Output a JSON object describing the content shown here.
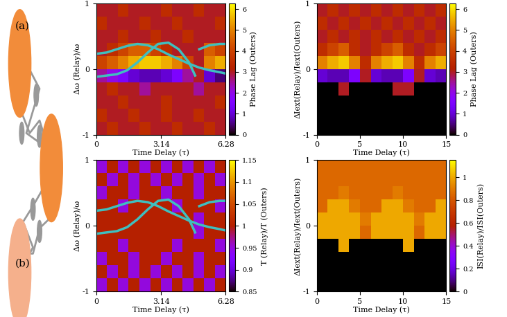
{
  "panel_labels": [
    "(a)",
    "(b)"
  ],
  "chart_data": [
    {
      "type": "heatmap",
      "x_label": "Time Delay (τ)",
      "y_label": "Δω (Relay)/ω",
      "xlim": [
        0,
        6.28
      ],
      "ylim": [
        -1,
        1
      ],
      "xticks": [
        0,
        3.14,
        6.28
      ],
      "yticks": [
        -1,
        0,
        1
      ],
      "colorbar_label": "Phase Lag (Outers)",
      "colorbar_range": [
        0,
        6.28
      ],
      "colorbar_ticks": [
        0,
        1,
        2,
        3,
        4,
        5,
        6
      ],
      "cells": [
        [
          3,
          3.5,
          3,
          3,
          3.5,
          3,
          3,
          3.5,
          3,
          3,
          3.5,
          3
        ],
        [
          3.5,
          3,
          3,
          3.5,
          3,
          3,
          3.5,
          3,
          3,
          3.5,
          3,
          3
        ],
        [
          3,
          3,
          3.5,
          3,
          3,
          3,
          3.5,
          3,
          3,
          3,
          3,
          3.5
        ],
        [
          3,
          3.5,
          3,
          3,
          2.5,
          3,
          3,
          3,
          3,
          2.5,
          3,
          3
        ],
        [
          2.5,
          2,
          1.5,
          1,
          0.8,
          0.8,
          1,
          1.5,
          2.5,
          3,
          1,
          0.5
        ],
        [
          4,
          4.5,
          5,
          5.5,
          5.8,
          5.8,
          5.5,
          5,
          4,
          3,
          5,
          5.5
        ],
        [
          3,
          3.5,
          4,
          4.5,
          4.5,
          4,
          3.5,
          3,
          3,
          3,
          4.5,
          4
        ],
        [
          3,
          3,
          3.5,
          3,
          3,
          3.5,
          3,
          3,
          3.5,
          3,
          3,
          3
        ],
        [
          3.5,
          3,
          3,
          3,
          3.5,
          3,
          3,
          3.5,
          3,
          3,
          3,
          3.5
        ],
        [
          3,
          3,
          3.5,
          3,
          3,
          3,
          3.5,
          3,
          3,
          3.5,
          3,
          3
        ]
      ],
      "series": [
        {
          "color": "#3fbfbf",
          "x": [
            0,
            0.5,
            1,
            1.5,
            2,
            2.5,
            3,
            3.5,
            4,
            4.5,
            5,
            5.5,
            6,
            6.28
          ],
          "values": [
            0.23,
            0.25,
            0.3,
            0.35,
            0.38,
            0.36,
            0.3,
            0.22,
            0.15,
            0.08,
            0.02,
            -0.02,
            -0.05,
            -0.07
          ]
        },
        {
          "color": "#3fbfbf",
          "x": [
            0,
            0.5,
            1,
            1.5,
            2,
            2.5,
            3,
            3.5,
            4,
            4.5,
            4.8,
            4.9,
            5,
            5.5,
            6,
            6.28
          ],
          "values": [
            -0.12,
            -0.1,
            -0.08,
            -0.02,
            0.1,
            0.25,
            0.38,
            0.4,
            0.3,
            0.1,
            -0.1,
            null,
            0.3,
            0.36,
            0.38,
            0.38
          ]
        }
      ]
    },
    {
      "type": "heatmap",
      "x_label": "Time Delay (τ)",
      "y_label": "ΔIext(Relay)/Iext(Outers)",
      "xlim": [
        0,
        15
      ],
      "ylim": [
        -1,
        1
      ],
      "xticks": [
        0,
        5,
        10,
        15
      ],
      "yticks": [
        -1,
        0,
        1
      ],
      "colorbar_label": "Phase Lag (Outers)",
      "colorbar_range": [
        0,
        6.28
      ],
      "colorbar_ticks": [
        0,
        1,
        2,
        3,
        4,
        5,
        6
      ],
      "cells": [
        [
          0,
          0,
          0,
          0,
          0,
          0,
          0,
          0,
          0,
          0,
          0,
          0
        ],
        [
          0,
          0,
          0,
          0,
          0,
          0,
          0,
          0,
          0,
          0,
          0,
          0
        ],
        [
          0,
          0,
          0,
          0,
          0,
          0,
          0,
          0,
          0,
          0,
          0,
          0
        ],
        [
          0,
          0,
          3,
          0,
          0,
          0,
          0,
          3,
          3,
          0,
          0,
          0
        ],
        [
          1,
          0.8,
          0.8,
          1.5,
          3,
          1,
          0.8,
          0.8,
          1.5,
          3,
          1,
          0.8
        ],
        [
          5,
          5.5,
          5.8,
          5,
          3.5,
          5,
          5.5,
          5.8,
          5,
          3.5,
          5,
          5.5
        ],
        [
          3.5,
          4,
          4.5,
          3.5,
          3,
          3.5,
          4,
          4.5,
          3.5,
          3,
          3.5,
          4
        ],
        [
          3,
          3.5,
          3,
          3.5,
          3,
          3.5,
          3,
          3.5,
          3,
          3.5,
          3,
          3.5
        ],
        [
          3.5,
          3,
          3.5,
          3,
          3.5,
          3,
          3.5,
          3,
          3.5,
          3,
          3.5,
          3
        ],
        [
          3,
          3.5,
          3,
          3.5,
          3,
          3.5,
          3,
          3.5,
          3,
          3.5,
          3,
          3.5
        ]
      ]
    },
    {
      "type": "heatmap",
      "x_label": "Time Delay (τ)",
      "y_label": "Δω (Relay)/ω",
      "xlim": [
        0,
        6.28
      ],
      "ylim": [
        -1,
        1
      ],
      "xticks": [
        0,
        3.14,
        6.28
      ],
      "yticks": [
        -1,
        0,
        1
      ],
      "colorbar_label": "T (Relay)/T (Outers)",
      "colorbar_range": [
        0.85,
        1.15
      ],
      "colorbar_ticks": [
        0.85,
        0.9,
        0.95,
        1,
        1.05,
        1.1,
        1.15
      ],
      "cells": [
        [
          0.95,
          1,
          0.95,
          1,
          0.95,
          1,
          0.95,
          1,
          0.95,
          1,
          0.95,
          1
        ],
        [
          1,
          0.95,
          1,
          0.95,
          1,
          0.95,
          1,
          0.95,
          1,
          0.95,
          1,
          0.95
        ],
        [
          0.95,
          1,
          1,
          0.95,
          1,
          1,
          0.95,
          1,
          1,
          0.95,
          1,
          1
        ],
        [
          1,
          1,
          0.95,
          1,
          1,
          1,
          1,
          0.95,
          1,
          1,
          1,
          0.95
        ],
        [
          1,
          1,
          1,
          1,
          1,
          1,
          1,
          1,
          1,
          0.95,
          1,
          1
        ],
        [
          1,
          1,
          1,
          1,
          1,
          1,
          1,
          1,
          1,
          0.95,
          1,
          1
        ],
        [
          1,
          1,
          0.95,
          1,
          1,
          1,
          1,
          0.95,
          1,
          1,
          1,
          0.95
        ],
        [
          0.95,
          1,
          1,
          0.95,
          1,
          1,
          0.95,
          1,
          1,
          0.95,
          1,
          1
        ],
        [
          1,
          0.95,
          1,
          0.95,
          1,
          0.95,
          1,
          0.95,
          1,
          0.95,
          1,
          0.95
        ],
        [
          0.95,
          1,
          0.95,
          1,
          0.95,
          1,
          0.95,
          1,
          0.95,
          1,
          0.95,
          1
        ]
      ],
      "series": [
        {
          "color": "#3fbfbf",
          "x": [
            0,
            0.5,
            1,
            1.5,
            2,
            2.5,
            3,
            3.5,
            4,
            4.5,
            5,
            5.5,
            6,
            6.28
          ],
          "values": [
            0.23,
            0.25,
            0.3,
            0.35,
            0.38,
            0.36,
            0.3,
            0.22,
            0.15,
            0.08,
            0.02,
            -0.02,
            -0.05,
            -0.07
          ]
        },
        {
          "color": "#3fbfbf",
          "x": [
            0,
            0.5,
            1,
            1.5,
            2,
            2.5,
            3,
            3.5,
            4,
            4.5,
            4.8,
            4.9,
            5,
            5.5,
            6,
            6.28
          ],
          "values": [
            -0.12,
            -0.1,
            -0.08,
            -0.02,
            0.1,
            0.25,
            0.38,
            0.4,
            0.3,
            0.1,
            -0.1,
            null,
            0.3,
            0.36,
            0.38,
            0.38
          ]
        }
      ]
    },
    {
      "type": "heatmap",
      "x_label": "Time Delay (τ)",
      "y_label": "ΔIext(Relay)/Iext(Outers)",
      "xlim": [
        0,
        15
      ],
      "ylim": [
        -1,
        1
      ],
      "xticks": [
        0,
        5,
        10,
        15
      ],
      "yticks": [
        -1,
        0,
        1
      ],
      "colorbar_label": "ISI(Relay)/ISI(Outers)",
      "colorbar_range": [
        0,
        1.15
      ],
      "colorbar_ticks": [
        0,
        0.2,
        0.4,
        0.6,
        0.8,
        1
      ],
      "cells": [
        [
          0,
          0,
          0,
          0,
          0,
          0,
          0,
          0,
          0,
          0,
          0,
          0
        ],
        [
          0,
          0,
          0,
          0,
          0,
          0,
          0,
          0,
          0,
          0,
          0,
          0
        ],
        [
          0,
          0,
          0,
          0,
          0,
          0,
          0,
          0,
          0,
          0,
          0,
          0
        ],
        [
          0,
          0,
          1,
          0,
          0,
          0,
          0,
          0,
          1,
          0,
          0,
          0
        ],
        [
          1,
          1,
          1,
          1,
          0.85,
          1,
          1,
          1,
          1,
          0.85,
          1,
          1
        ],
        [
          1,
          1,
          1,
          1,
          0.9,
          1,
          1,
          1,
          1,
          0.9,
          1,
          1
        ],
        [
          0.85,
          1,
          1,
          0.9,
          0.85,
          0.85,
          1,
          1,
          0.9,
          0.85,
          0.85,
          1
        ],
        [
          0.85,
          0.85,
          0.9,
          0.85,
          0.85,
          0.85,
          0.85,
          0.9,
          0.85,
          0.85,
          0.85,
          0.85
        ],
        [
          0.85,
          0.85,
          0.85,
          0.85,
          0.85,
          0.85,
          0.85,
          0.85,
          0.85,
          0.85,
          0.85,
          0.85
        ],
        [
          0.85,
          0.85,
          0.85,
          0.85,
          0.85,
          0.85,
          0.85,
          0.85,
          0.85,
          0.85,
          0.85,
          0.85
        ]
      ]
    }
  ]
}
